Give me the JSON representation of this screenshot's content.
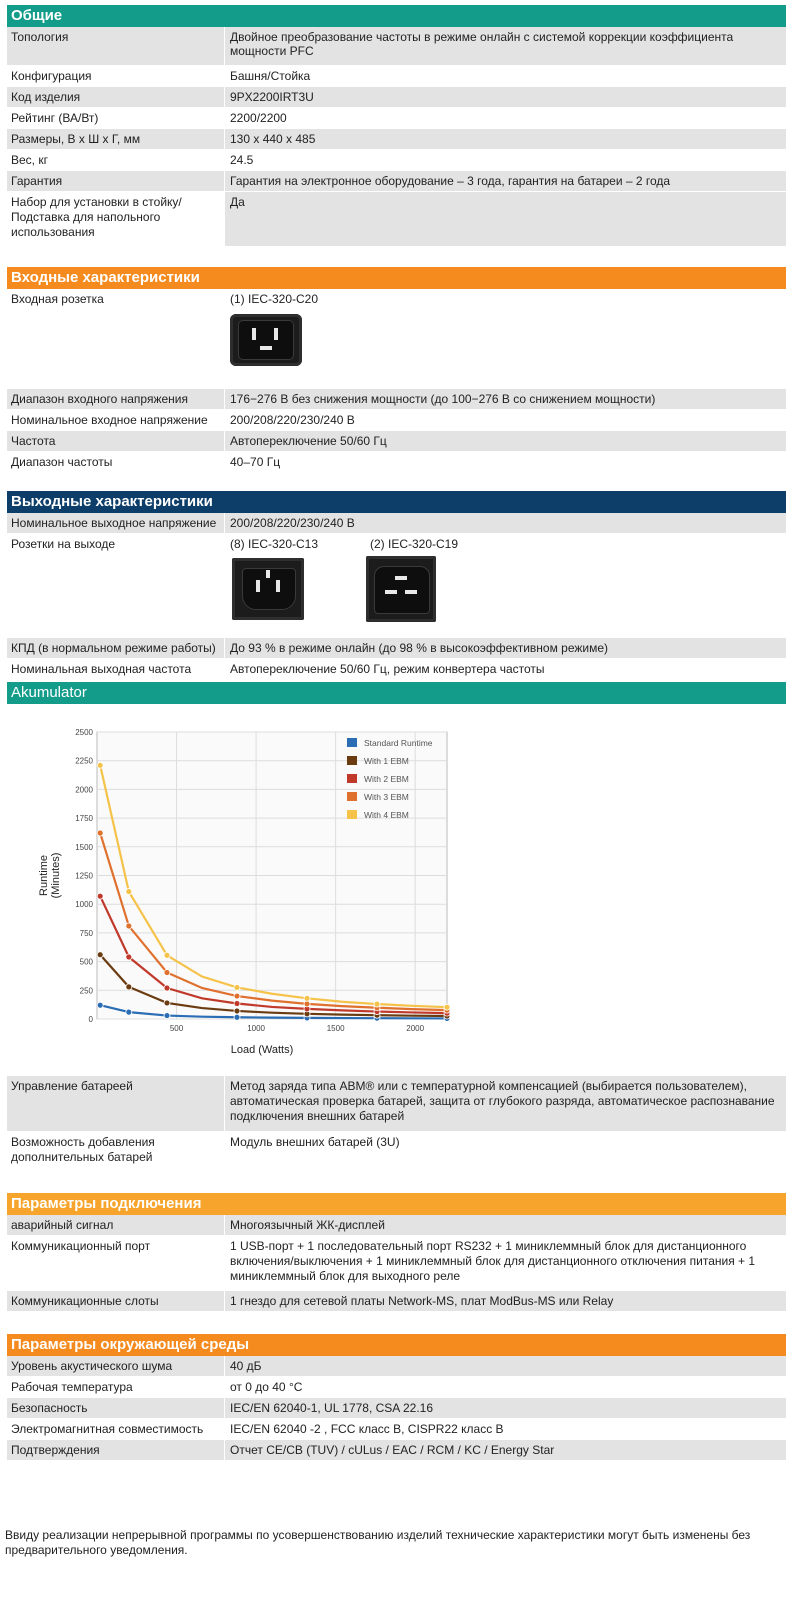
{
  "general": {
    "title": "Общие",
    "rows": [
      {
        "label": "Топология",
        "value": "Двойное преобразование частоты в режиме онлайн с системой коррекции коэффициента мощности PFC"
      },
      {
        "label": "Конфигурация",
        "value": "Башня/Стойка"
      },
      {
        "label": "Код изделия",
        "value": "9PX2200IRT3U"
      },
      {
        "label": "Рейтинг (ВА/Вт)",
        "value": "2200/2200"
      },
      {
        "label": "Размеры, В х Ш х Г, мм",
        "value": "130 x 440 x 485"
      },
      {
        "label": "Вес, кг",
        "value": "24.5"
      },
      {
        "label": "Гарантия",
        "value": "Гарантия на электронное оборудование – 3 года, гарантия на батареи – 2 года"
      },
      {
        "label": "Набор для установки в стойку/ Подставка для напольного использования",
        "value": "Да"
      }
    ]
  },
  "input": {
    "title": "Входные характеристики",
    "socket_label": "Входная розетка",
    "socket_value": "(1) IEC-320-C20",
    "rows": [
      {
        "label": "Диапазон входного напряжения",
        "value": "176−276 В без снижения мощности (до 100−276 В со снижением мощности)"
      },
      {
        "label": "Номинальное входное напряжение",
        "value": "200/208/220/230/240 В"
      },
      {
        "label": "Частота",
        "value": "Автопереключение 50/60 Гц"
      },
      {
        "label": "Диапазон частоты",
        "value": "40–70 Гц"
      }
    ]
  },
  "output": {
    "title": "Выходные характеристики",
    "nominal_label": "Номинальное выходное напряжение",
    "nominal_value": "200/208/220/230/240 В",
    "sockets_label": "Розетки на выходе",
    "socket_a": "(8) IEC-320-C13",
    "socket_b": "(2) IEC-320-C19",
    "rows": [
      {
        "label": "КПД (в нормальном режиме работы)",
        "value": "До 93 % в режиме онлайн (до 98 % в высокоэффективном режиме)"
      },
      {
        "label": "Номинальная выходная частота",
        "value": "Автопереключение 50/60 Гц, режим конвертера частоты"
      }
    ]
  },
  "battery": {
    "title": "Akumulator",
    "rows": [
      {
        "label": "Управление батареей",
        "value": "Метод заряда типа ABM® или с температурной компенсацией (выбирается пользователем), автоматическая проверка батарей, защита от глубокого разряда, автоматическое распознавание подключения внешних батарей"
      },
      {
        "label": "Возможность добавления дополнительных батарей",
        "value": "Модуль внешних батарей (3U)"
      }
    ]
  },
  "chart_data": {
    "type": "line",
    "title": "",
    "xlabel": "Load (Watts)",
    "ylabel": "Runtime (Minutes)",
    "ylabel_lines": [
      "Runtime",
      "(Minutes)"
    ],
    "xlim": [
      0,
      2200
    ],
    "ylim": [
      0,
      2500
    ],
    "xticks": [
      500,
      1000,
      1500,
      2000
    ],
    "yticks": [
      0,
      250,
      500,
      750,
      1000,
      1250,
      1500,
      1750,
      2000,
      2250,
      2500
    ],
    "grid": true,
    "legend_position": "top-right",
    "x": [
      20,
      200,
      440,
      660,
      880,
      1100,
      1320,
      1540,
      1760,
      1980,
      2200
    ],
    "series": [
      {
        "name": "Standard Runtime",
        "color": "#2a6db5",
        "values": [
          120,
          60,
          30,
          20,
          15,
          12,
          10,
          8,
          7,
          6,
          5
        ]
      },
      {
        "name": "With 1 EBM",
        "color": "#6b3c12",
        "values": [
          560,
          280,
          140,
          95,
          70,
          55,
          45,
          38,
          33,
          29,
          26
        ]
      },
      {
        "name": "With 2 EBM",
        "color": "#c0392b",
        "values": [
          1070,
          540,
          270,
          180,
          135,
          105,
          88,
          75,
          65,
          57,
          51
        ]
      },
      {
        "name": "With 3 EBM",
        "color": "#e0702e",
        "values": [
          1620,
          810,
          405,
          270,
          200,
          160,
          132,
          112,
          98,
          86,
          77
        ]
      },
      {
        "name": "With 4 EBM",
        "color": "#f5c24a",
        "values": [
          2210,
          1110,
          555,
          370,
          275,
          220,
          180,
          150,
          130,
          115,
          103
        ]
      }
    ]
  },
  "connectivity": {
    "title": "Параметры подключения",
    "rows": [
      {
        "label": "аварийный сигнал",
        "value": "Многоязычный ЖК-дисплей"
      },
      {
        "label": "Коммуникационный порт",
        "value": "1 USB-порт + 1 последовательный порт RS232 + 1 миниклеммный блок для дистанционного включения/выключения + 1 миниклеммный блок для дистанционного отключения питания + 1 миниклеммный блок для выходного реле"
      },
      {
        "label": "Коммуникационные слоты",
        "value": "1 гнездо для сетевой платы Network-MS, плат ModBus-MS или Relay"
      }
    ]
  },
  "environment": {
    "title": "Параметры окружающей среды",
    "rows": [
      {
        "label": "Уровень акустического шума",
        "value": "40 дБ"
      },
      {
        "label": "Рабочая температура",
        "value": "от 0 до 40 °С"
      },
      {
        "label": "Безопасность",
        "value": "IEC/EN 62040-1, UL 1778, CSA 22.16"
      },
      {
        "label": "Электромагнитная совместимость",
        "value": "IEC/EN 62040 -2 , FCC класс B, CISPR22 класс B"
      },
      {
        "label": "Подтверждения",
        "value": "Отчет CE/CB (TUV) / cULus / EAC / RCM / KC / Energy Star"
      }
    ]
  },
  "footnote": "Ввиду реализации непрерывной программы по усовершенствованию изделий технические характеристики могут быть изменены без предварительного уведомления."
}
